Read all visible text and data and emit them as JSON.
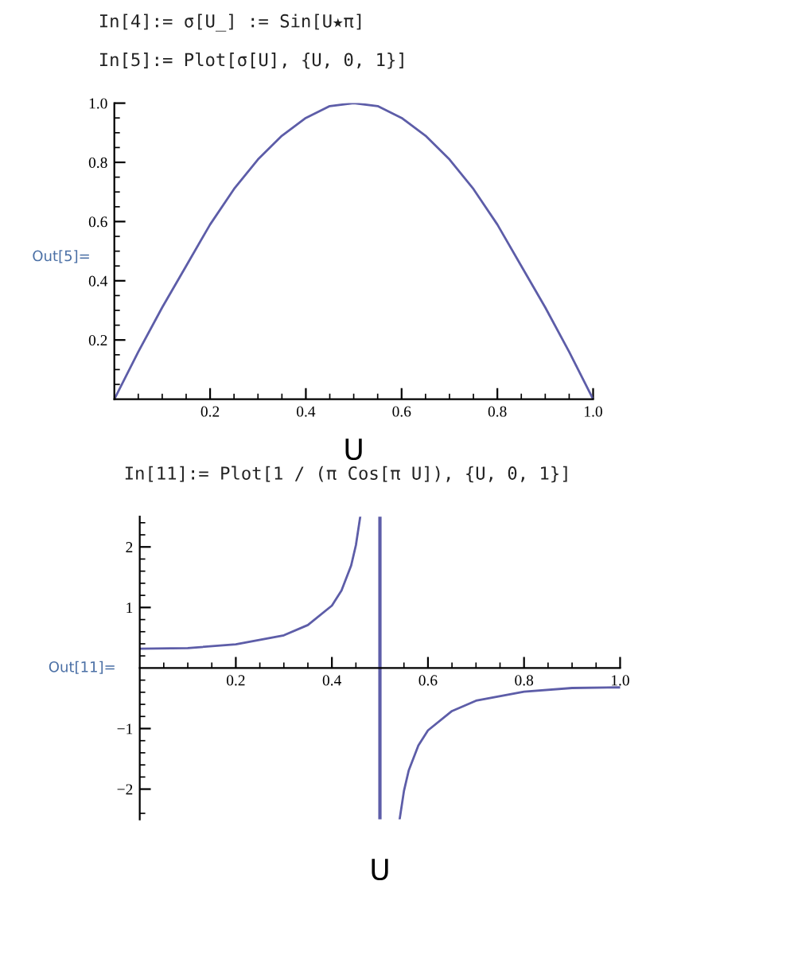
{
  "chart_data": [
    {
      "type": "line",
      "title": "In[4]:= σ[U_] := Sin[U★π]",
      "subtitle": "In[5]:= Plot[σ[U], {U, 0, 1}]",
      "xlabel": "U",
      "ylabel": "Out[5]=",
      "x": [
        0,
        0.05,
        0.1,
        0.15,
        0.2,
        0.25,
        0.3,
        0.35,
        0.4,
        0.45,
        0.5,
        0.55,
        0.6,
        0.65,
        0.7,
        0.75,
        0.8,
        0.85,
        0.9,
        0.95,
        1.0
      ],
      "series": [
        {
          "color": "#5d5da8",
          "values": [
            0,
            0.16,
            0.31,
            0.45,
            0.59,
            0.71,
            0.81,
            0.89,
            0.95,
            0.99,
            1.0,
            0.99,
            0.95,
            0.89,
            0.81,
            0.71,
            0.59,
            0.45,
            0.31,
            0.16,
            0
          ]
        }
      ],
      "xlim": [
        0,
        1
      ],
      "ylim": [
        0,
        1
      ],
      "xticks": [
        {
          "value": 0.05,
          "label": null
        },
        {
          "value": 0.1,
          "label": null
        },
        {
          "value": 0.15,
          "label": null
        },
        0.2,
        {
          "value": 0.25,
          "label": null
        },
        {
          "value": 0.3,
          "label": null
        },
        {
          "value": 0.35,
          "label": null
        },
        0.4,
        {
          "value": 0.45,
          "label": null
        },
        {
          "value": 0.5,
          "label": null
        },
        {
          "value": 0.55,
          "label": null
        },
        0.6,
        {
          "value": 0.65,
          "label": null
        },
        {
          "value": 0.7,
          "label": null
        },
        {
          "value": 0.75,
          "label": null
        },
        0.8,
        {
          "value": 0.85,
          "label": null
        },
        {
          "value": 0.9,
          "label": null
        },
        {
          "value": 0.95,
          "label": null
        },
        {
          "value": 1,
          "label": "1.0"
        }
      ],
      "yticks": [
        {
          "value": 0.05,
          "label": null
        },
        {
          "value": 0.1,
          "label": null
        },
        {
          "value": 0.15,
          "label": null
        },
        0.2,
        {
          "value": 0.25,
          "label": null
        },
        {
          "value": 0.3,
          "label": null
        },
        {
          "value": 0.35,
          "label": null
        },
        0.4,
        {
          "value": 0.45,
          "label": null
        },
        {
          "value": 0.5,
          "label": null
        },
        {
          "value": 0.55,
          "label": null
        },
        0.6,
        {
          "value": 0.65,
          "label": null
        },
        {
          "value": 0.7,
          "label": null
        },
        {
          "value": 0.75,
          "label": null
        },
        0.8,
        {
          "value": 0.85,
          "label": null
        },
        {
          "value": 0.9,
          "label": null
        },
        {
          "value": 0.95,
          "label": null
        },
        {
          "value": 1,
          "label": "1.0"
        }
      ],
      "grid": false,
      "legend": false
    },
    {
      "type": "line",
      "title": "In[11]:= Plot[1 / (π Cos[π U]), {U, 0, 1}]",
      "xlabel": "U",
      "ylabel": "Out[11]=",
      "x": [
        0,
        0.1,
        0.2,
        0.3,
        0.35,
        0.4,
        0.42,
        0.44,
        0.45,
        0.459,
        0.5,
        0.541,
        0.55,
        0.56,
        0.58,
        0.6,
        0.65,
        0.7,
        0.8,
        0.9,
        1.0
      ],
      "series": [
        {
          "color": "#5d5da8",
          "values": [
            0.32,
            0.33,
            0.39,
            0.54,
            0.71,
            1.03,
            1.28,
            1.69,
            2.03,
            2.5,
            null,
            -2.5,
            -2.03,
            -1.69,
            -1.28,
            -1.03,
            -0.71,
            -0.54,
            -0.39,
            -0.33,
            -0.32
          ]
        }
      ],
      "ref_lines": [
        {
          "axis": "x",
          "value": 0.5,
          "color": "#5d5da8"
        }
      ],
      "xlim": [
        0,
        1
      ],
      "ylim": [
        -2.5,
        2.5
      ],
      "xticks": [
        {
          "value": 0.05,
          "label": null
        },
        {
          "value": 0.1,
          "label": null
        },
        {
          "value": 0.15,
          "label": null
        },
        0.2,
        {
          "value": 0.25,
          "label": null
        },
        {
          "value": 0.3,
          "label": null
        },
        {
          "value": 0.35,
          "label": null
        },
        0.4,
        {
          "value": 0.45,
          "label": null
        },
        {
          "value": 0.5,
          "label": null
        },
        {
          "value": 0.55,
          "label": null
        },
        0.6,
        {
          "value": 0.65,
          "label": null
        },
        {
          "value": 0.7,
          "label": null
        },
        {
          "value": 0.75,
          "label": null
        },
        0.8,
        {
          "value": 0.85,
          "label": null
        },
        {
          "value": 0.9,
          "label": null
        },
        {
          "value": 0.95,
          "label": null
        },
        {
          "value": 1,
          "label": "1.0"
        }
      ],
      "yticks": [
        {
          "value": -2.4,
          "label": null
        },
        {
          "value": -2,
          "label": "−2"
        },
        {
          "value": -1.8,
          "label": null
        },
        {
          "value": -1.6,
          "label": null
        },
        {
          "value": -1.4,
          "label": null
        },
        {
          "value": -1.2,
          "label": null
        },
        {
          "value": -1,
          "label": "−1"
        },
        {
          "value": -0.8,
          "label": null
        },
        {
          "value": -0.6,
          "label": null
        },
        {
          "value": -0.4,
          "label": null
        },
        {
          "value": -0.2,
          "label": null
        },
        {
          "value": 0.2,
          "label": null
        },
        {
          "value": 0.4,
          "label": null
        },
        {
          "value": 0.6,
          "label": null
        },
        {
          "value": 0.8,
          "label": null
        },
        1,
        {
          "value": 1.2,
          "label": null
        },
        {
          "value": 1.4,
          "label": null
        },
        {
          "value": 1.6,
          "label": null
        },
        {
          "value": 1.8,
          "label": null
        },
        2,
        {
          "value": 2.2,
          "label": null
        },
        {
          "value": 2.4,
          "label": null
        }
      ],
      "grid": false,
      "legend": false
    }
  ]
}
